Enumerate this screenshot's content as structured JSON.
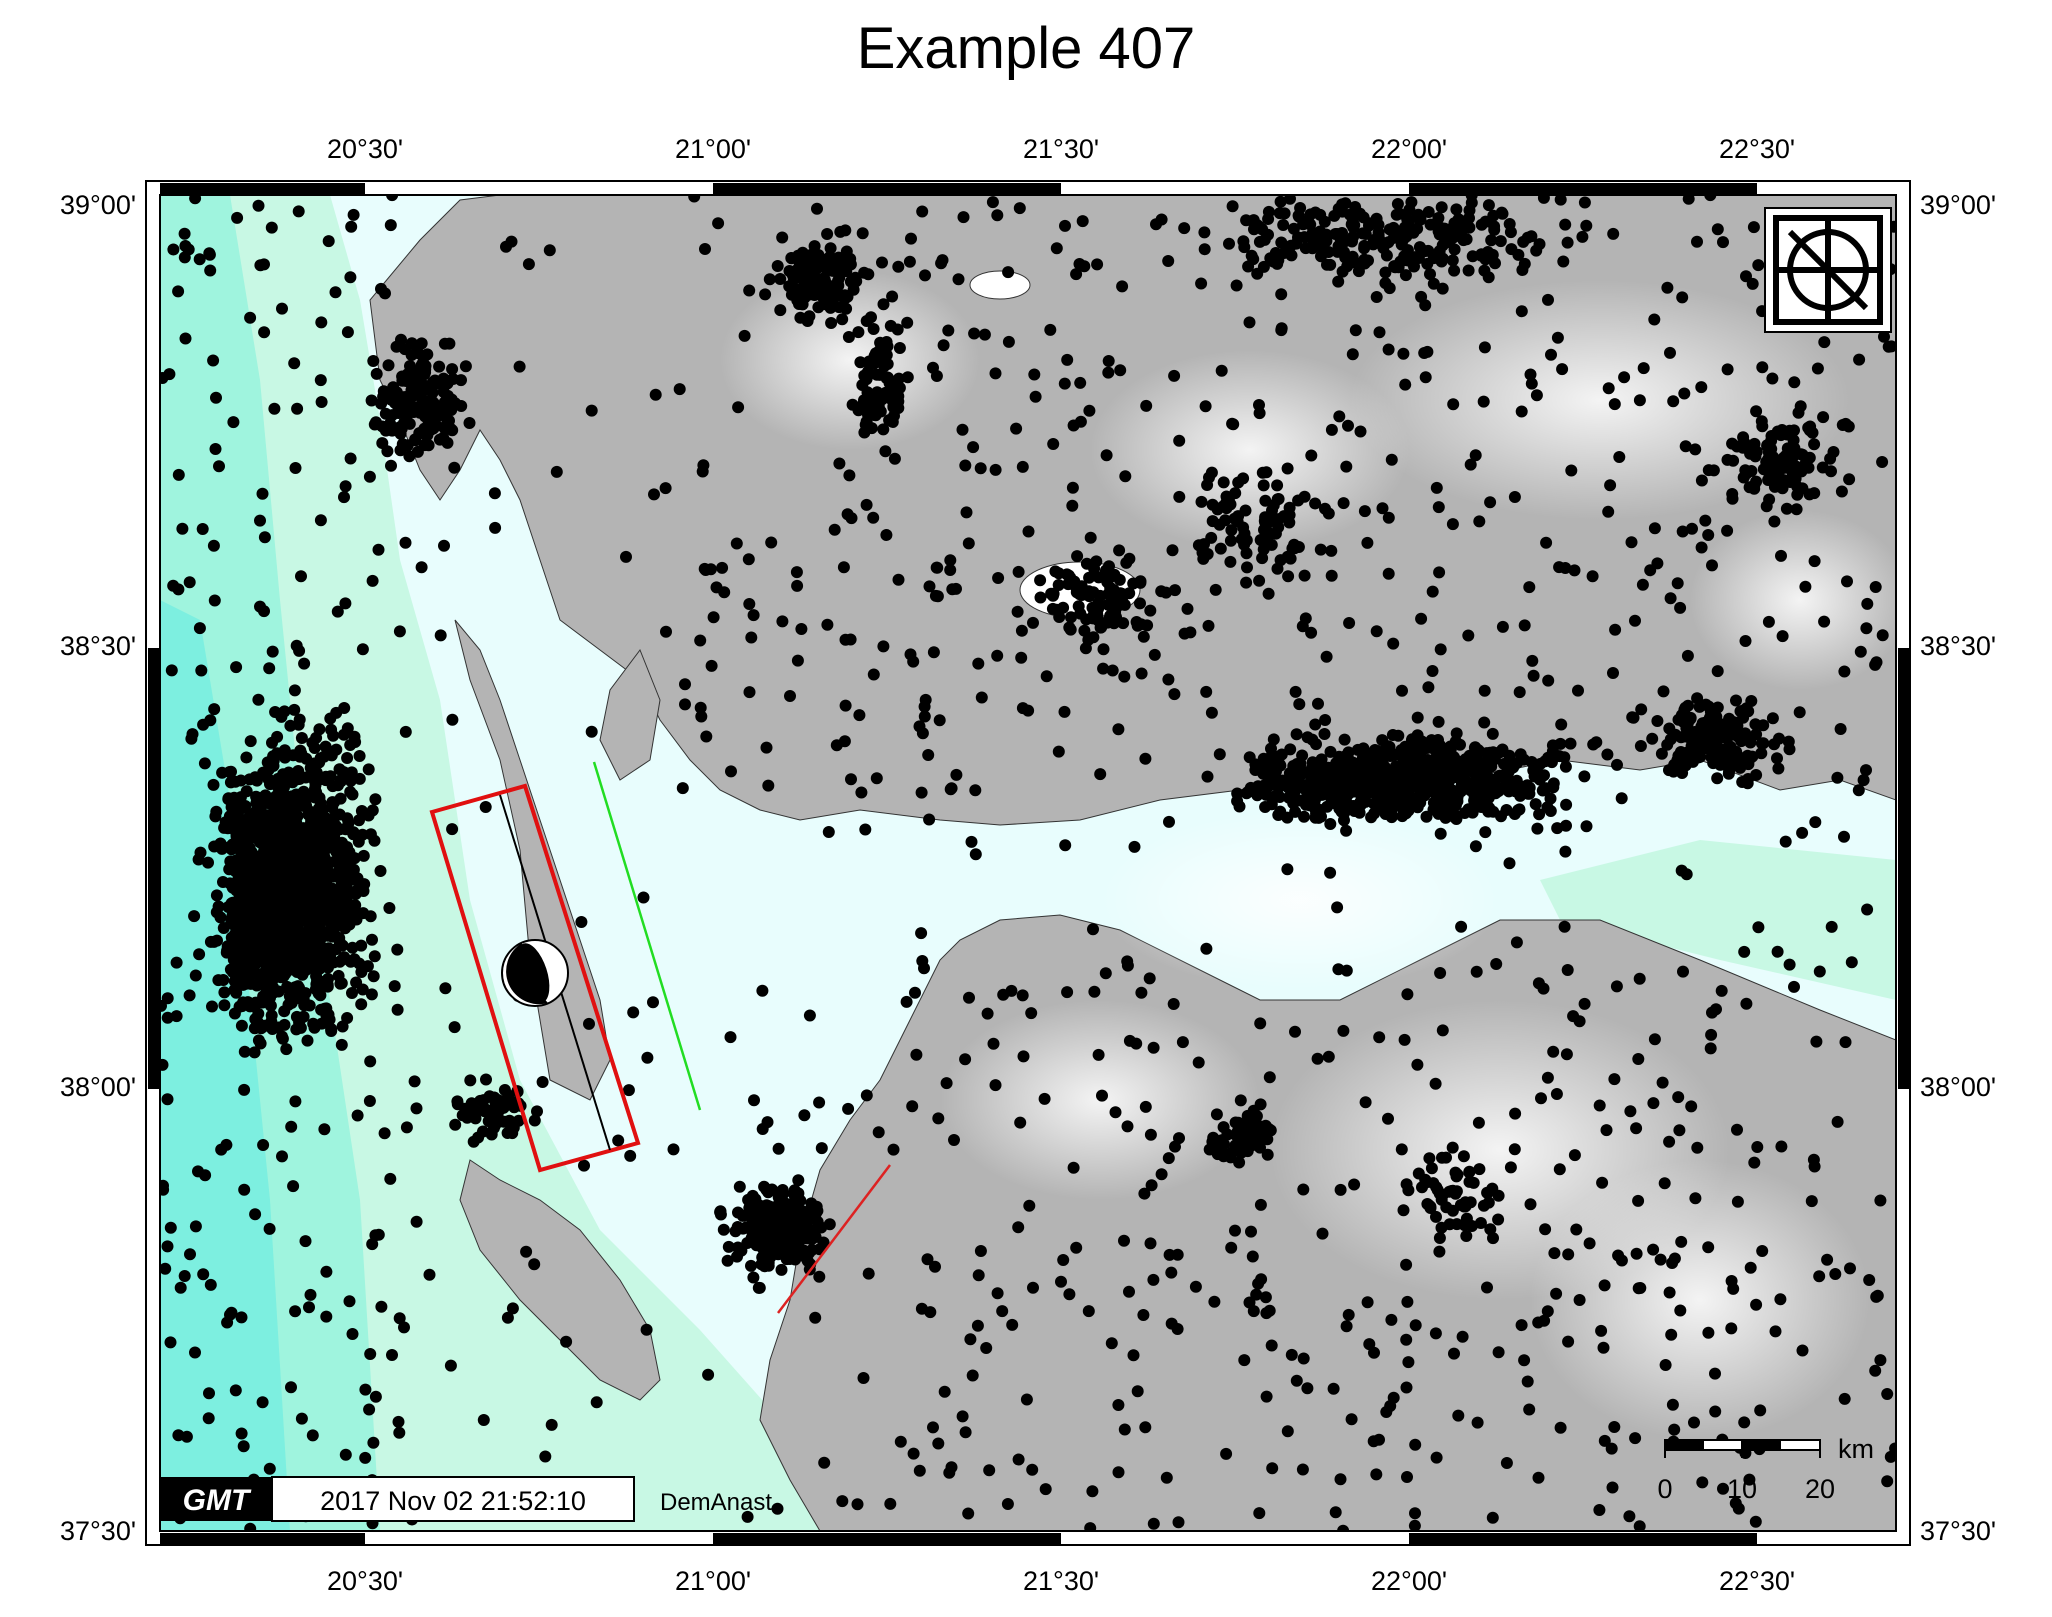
{
  "title": "Example 407",
  "map": {
    "lon_range": [
      "20°12'",
      "22°42'"
    ],
    "lat_range": [
      "37°30'",
      "39°00'"
    ],
    "lon_ticks": [
      "20°30'",
      "21°00'",
      "21°30'",
      "22°00'",
      "22°30'"
    ],
    "lat_ticks": [
      "39°00'",
      "38°30'",
      "38°00'",
      "37°30'"
    ],
    "layers": [
      "shaded relief topography (gray)",
      "bathymetry (cyan / green shades)",
      "coastline",
      "earthquake epicenters (black dots)",
      "fault plane rectangle (red)",
      "fault trace (black)",
      "fault line (green)",
      "fault line (red)",
      "focal mechanism beachball",
      "GMT logo (top-right)"
    ],
    "colors": {
      "land": "#b4b4b4",
      "shallow_sea": "#e8fdfd",
      "deep_sea": "#7defe0",
      "mid_sea": "#c8f8e4",
      "epicenter": "#000000",
      "fault_rect": "#e01010",
      "fault_green": "#22dd22",
      "fault_red": "#dd2222"
    }
  },
  "scale_bar": {
    "unit": "km",
    "labels": [
      "0",
      "10",
      "20"
    ]
  },
  "timestamp": {
    "logo": "GMT",
    "text": "2017 Nov 02 21:52:10",
    "author": "DemAnast"
  }
}
